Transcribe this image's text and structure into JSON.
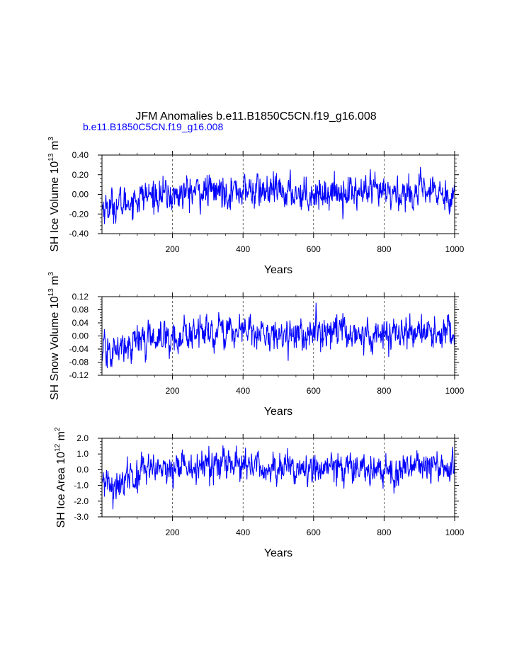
{
  "header": {
    "title": "JFM Anomalies b.e11.B1850C5CN.f19_g16.008",
    "subtitle": "b.e11.B1850C5CN.f19_g16.008",
    "subtitle_color": "#0000ff"
  },
  "colors": {
    "series": "#0000ff",
    "axis": "#000000",
    "grid": "#000000"
  },
  "chart_data": [
    {
      "type": "line",
      "title": "",
      "xlabel": "Years",
      "ylabel_main": "SH Ice Volume 10",
      "ylabel_exp": "13",
      "ylabel_unit": " m",
      "ylabel_unit_exp": "3",
      "xlim": [
        0,
        1000
      ],
      "ylim": [
        -0.4,
        0.4
      ],
      "xticks": [
        200,
        400,
        600,
        800,
        1000
      ],
      "xtick_labels": [
        "200",
        "400",
        "600",
        "800",
        "1000"
      ],
      "yticks": [
        -0.4,
        -0.2,
        0.0,
        0.2,
        0.4
      ],
      "ytick_labels": [
        "-0.40",
        "-0.20",
        "0.00",
        "0.20",
        "0.40"
      ],
      "grid": "vertical dashed at 200, 400, 600, 800",
      "series": [
        {
          "name": "b.e11.B1850C5CN.f19_g16.008",
          "x_knots": [
            0,
            10,
            30,
            60,
            90,
            120,
            160,
            200,
            240,
            300,
            400,
            500,
            600,
            700,
            800,
            900,
            1000
          ],
          "y_knots": [
            -0.12,
            -0.13,
            -0.12,
            -0.1,
            -0.05,
            -0.02,
            0.0,
            -0.02,
            0.02,
            0.03,
            0.04,
            0.02,
            0.01,
            0.03,
            0.0,
            0.02,
            0.0
          ],
          "noise_sd": 0.075,
          "y_range_observed": [
            -0.34,
            0.35
          ]
        }
      ]
    },
    {
      "type": "line",
      "title": "",
      "xlabel": "Years",
      "ylabel_main": "SH Snow Volume 10",
      "ylabel_exp": "13",
      "ylabel_unit": " m",
      "ylabel_unit_exp": "3",
      "xlim": [
        0,
        1000
      ],
      "ylim": [
        -0.12,
        0.12
      ],
      "xticks": [
        200,
        400,
        600,
        800,
        1000
      ],
      "xtick_labels": [
        "200",
        "400",
        "600",
        "800",
        "1000"
      ],
      "yticks": [
        -0.12,
        -0.08,
        -0.04,
        0.0,
        0.04,
        0.08,
        0.12
      ],
      "ytick_labels": [
        "-0.12",
        "-0.08",
        "-0.04",
        "0.00",
        "0.04",
        "0.08",
        "0.12"
      ],
      "grid": "vertical dashed at 200, 400, 600, 800",
      "series": [
        {
          "name": "b.e11.B1850C5CN.f19_g16.008",
          "x_knots": [
            0,
            10,
            30,
            60,
            90,
            120,
            160,
            200,
            240,
            300,
            400,
            500,
            600,
            700,
            800,
            900,
            1000
          ],
          "y_knots": [
            -0.05,
            -0.05,
            -0.05,
            -0.04,
            -0.02,
            -0.01,
            0.0,
            -0.01,
            0.01,
            0.01,
            0.015,
            0.005,
            0.005,
            0.01,
            0.0,
            0.01,
            0.0
          ],
          "noise_sd": 0.022,
          "y_range_observed": [
            -0.12,
            0.09
          ]
        }
      ]
    },
    {
      "type": "line",
      "title": "",
      "xlabel": "Years",
      "ylabel_main": "SH Ice Area 10",
      "ylabel_exp": "12",
      "ylabel_unit": " m",
      "ylabel_unit_exp": "2",
      "xlim": [
        0,
        1000
      ],
      "ylim": [
        -3.0,
        2.0
      ],
      "xticks": [
        200,
        400,
        600,
        800,
        1000
      ],
      "xtick_labels": [
        "200",
        "400",
        "600",
        "800",
        "1000"
      ],
      "yticks": [
        -3.0,
        -2.0,
        -1.0,
        0.0,
        1.0,
        2.0
      ],
      "ytick_labels": [
        "-3.0",
        "-2.0",
        "-1.0",
        "0.0",
        "1.0",
        "2.0"
      ],
      "grid": "vertical dashed at 200, 400, 600, 800",
      "series": [
        {
          "name": "b.e11.B1850C5CN.f19_g16.008",
          "x_knots": [
            0,
            10,
            30,
            60,
            90,
            120,
            160,
            200,
            240,
            300,
            400,
            500,
            600,
            700,
            800,
            900,
            1000
          ],
          "y_knots": [
            -1.0,
            -1.0,
            -0.9,
            -0.7,
            -0.4,
            -0.2,
            0.0,
            -0.1,
            0.2,
            0.2,
            0.2,
            0.1,
            0.0,
            0.2,
            0.0,
            0.2,
            0.1
          ],
          "noise_sd": 0.45,
          "y_range_observed": [
            -3.0,
            1.8
          ]
        }
      ]
    }
  ]
}
